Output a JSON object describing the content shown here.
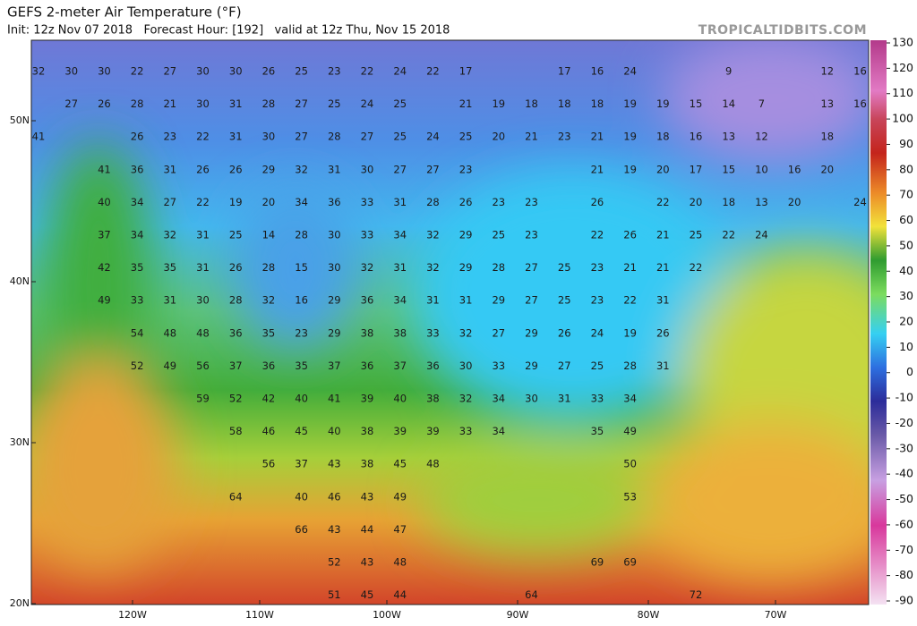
{
  "map": {
    "title": "GEFS 2-meter Air Temperature (°F)",
    "init": "Init: 12z Nov 07 2018   Forecast Hour: [192]   valid at 12z Thu, Nov 15 2018",
    "site": "TROPICALTIDBITS.COM",
    "lat_labels": [
      "50N",
      "40N",
      "30N",
      "20N"
    ],
    "lon_labels": [
      "120W",
      "110W",
      "100W",
      "90W",
      "80W",
      "70W"
    ],
    "colorbar_ticks": [
      130,
      120,
      110,
      100,
      90,
      80,
      70,
      60,
      50,
      40,
      30,
      20,
      10,
      0,
      -10,
      -20,
      -30,
      -40,
      -50,
      -60,
      -70,
      -80,
      -90
    ],
    "stations": [
      [
        32,
        30,
        30,
        22,
        27,
        30,
        30,
        26,
        25,
        23,
        22,
        24,
        22,
        17,
        17,
        16,
        24,
        9,
        12,
        16
      ],
      [
        27,
        26,
        28,
        21,
        30,
        31,
        28,
        27,
        25,
        24,
        25,
        21,
        19,
        18,
        18,
        18,
        19,
        19,
        15,
        14,
        7,
        13,
        16
      ],
      [
        41,
        26,
        23,
        22,
        31,
        30,
        27,
        28,
        27,
        25,
        24,
        25,
        20,
        21,
        23,
        21,
        19,
        18,
        16,
        13,
        12,
        18
      ],
      [
        41,
        36,
        31,
        26,
        26,
        29,
        32,
        31,
        30,
        27,
        27,
        23,
        21,
        19,
        20,
        17,
        15,
        10,
        16,
        20
      ],
      [
        40,
        34,
        27,
        22,
        19,
        20,
        34,
        36,
        33,
        31,
        28,
        26,
        23,
        23,
        26,
        22,
        20,
        18,
        13,
        20,
        24
      ],
      [
        37,
        34,
        32,
        31,
        25,
        14,
        28,
        30,
        33,
        34,
        32,
        29,
        25,
        23,
        22,
        26,
        21,
        25,
        22,
        24
      ],
      [
        42,
        35,
        35,
        31,
        26,
        28,
        15,
        30,
        32,
        31,
        32,
        29,
        28,
        27,
        25,
        23,
        21,
        21,
        22
      ],
      [
        49,
        33,
        31,
        30,
        28,
        32,
        16,
        29,
        36,
        34,
        31,
        31,
        29,
        27,
        25,
        23,
        22,
        31
      ],
      [
        54,
        48,
        48,
        36,
        35,
        23,
        29,
        38,
        38,
        33,
        32,
        27,
        29,
        26,
        24,
        19,
        26
      ],
      [
        52,
        49,
        56,
        37,
        36,
        35,
        37,
        36,
        37,
        36,
        30,
        33,
        29,
        27,
        25,
        28,
        31
      ],
      [
        59,
        52,
        42,
        40,
        41,
        39,
        40,
        38,
        32,
        34,
        30,
        31,
        33,
        34
      ],
      [
        58,
        46,
        45,
        40,
        38,
        39,
        39,
        33,
        34,
        35,
        49
      ],
      [
        56,
        37,
        43,
        38,
        45,
        48,
        50
      ],
      [
        64,
        40,
        46,
        43,
        49,
        53
      ],
      [
        66,
        43,
        44,
        47
      ],
      [
        52,
        43,
        48,
        69,
        69
      ],
      [
        51,
        45,
        44,
        64,
        72
      ]
    ]
  }
}
